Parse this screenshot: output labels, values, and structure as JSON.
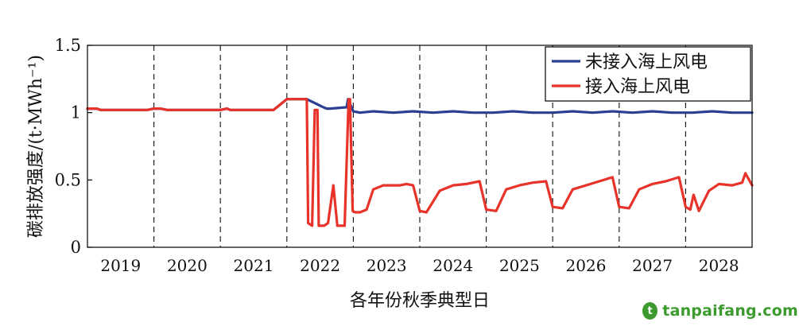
{
  "chart_data": {
    "type": "line",
    "xlabel": "各年份秋季典型日",
    "ylabel": "碳排放强度/(t·MWh⁻¹)",
    "ylim": [
      0,
      1.5
    ],
    "yticks": [
      0,
      0.5,
      1,
      1.5
    ],
    "ytick_labels": [
      "0",
      "0.5",
      "1",
      "1.5"
    ],
    "xlim": [
      0,
      10
    ],
    "categories": [
      "2019",
      "2020",
      "2021",
      "2022",
      "2023",
      "2024",
      "2025",
      "2026",
      "2027",
      "2028"
    ],
    "legend_position": "top-right",
    "colors": {
      "blue": "#2b3f93",
      "red": "#e8332b"
    },
    "series": [
      {
        "name": "未接入海上风电",
        "color": "#2b3f93",
        "x": [
          0,
          0.14,
          0.2,
          0.4,
          0.7,
          0.9,
          1,
          1.1,
          1.2,
          1.25,
          1.5,
          1.8,
          2,
          2.1,
          2.15,
          2.5,
          2.8,
          3,
          3.05,
          3.3,
          3.55,
          3.6,
          3.65,
          3.9,
          3.92,
          4.0,
          4.1,
          4.3,
          4.6,
          4.9,
          5.2,
          5.5,
          5.8,
          6.1,
          6.4,
          6.7,
          7,
          7.3,
          7.6,
          7.9,
          8.2,
          8.5,
          8.8,
          9.1,
          9.4,
          9.7,
          10
        ],
        "y": [
          1.03,
          1.03,
          1.02,
          1.02,
          1.02,
          1.02,
          1.03,
          1.03,
          1.02,
          1.02,
          1.02,
          1.02,
          1.02,
          1.03,
          1.02,
          1.02,
          1.02,
          1.1,
          1.1,
          1.1,
          1.04,
          1.03,
          1.03,
          1.04,
          1.1,
          1.01,
          1.0,
          1.01,
          1.0,
          1.01,
          1.0,
          1.01,
          1.0,
          1.0,
          1.01,
          1.0,
          1.0,
          1.01,
          1.0,
          1.01,
          1.0,
          1.01,
          1.0,
          1.0,
          1.01,
          1.0,
          1.0
        ]
      },
      {
        "name": "接入海上风电",
        "color": "#e8332b",
        "x": [
          0,
          0.14,
          0.2,
          0.4,
          0.7,
          0.9,
          1,
          1.1,
          1.2,
          1.25,
          1.5,
          1.8,
          2,
          2.1,
          2.15,
          2.5,
          2.8,
          3,
          3.05,
          3.3,
          3.32,
          3.38,
          3.42,
          3.46,
          3.48,
          3.52,
          3.56,
          3.62,
          3.7,
          3.76,
          3.8,
          3.83,
          3.87,
          3.93,
          3.95,
          3.99,
          4.03,
          4.1,
          4.2,
          4.3,
          4.45,
          4.7,
          4.8,
          4.9,
          5.0,
          5.1,
          5.3,
          5.5,
          5.7,
          5.9,
          6.0,
          6.15,
          6.3,
          6.5,
          6.7,
          6.9,
          7.0,
          7.15,
          7.3,
          7.5,
          7.7,
          7.9,
          8.0,
          8.15,
          8.3,
          8.5,
          8.7,
          8.9,
          9.0,
          9.07,
          9.12,
          9.2,
          9.35,
          9.5,
          9.7,
          9.85,
          9.9,
          10
        ],
        "y": [
          1.03,
          1.03,
          1.02,
          1.02,
          1.02,
          1.02,
          1.03,
          1.03,
          1.02,
          1.02,
          1.02,
          1.02,
          1.02,
          1.03,
          1.02,
          1.02,
          1.02,
          1.1,
          1.1,
          1.1,
          0.18,
          0.16,
          1.02,
          1.02,
          0.16,
          0.16,
          0.16,
          0.18,
          0.46,
          0.16,
          0.16,
          0.16,
          0.16,
          1.1,
          1.1,
          0.27,
          0.26,
          0.26,
          0.28,
          0.43,
          0.46,
          0.46,
          0.47,
          0.46,
          0.27,
          0.26,
          0.42,
          0.46,
          0.47,
          0.49,
          0.28,
          0.27,
          0.43,
          0.46,
          0.48,
          0.49,
          0.3,
          0.29,
          0.43,
          0.46,
          0.49,
          0.52,
          0.3,
          0.29,
          0.43,
          0.47,
          0.49,
          0.52,
          0.3,
          0.28,
          0.39,
          0.27,
          0.42,
          0.47,
          0.46,
          0.48,
          0.55,
          0.46
        ]
      }
    ]
  },
  "watermark": {
    "logo_glyph": "t",
    "text": "tanpaifang.com"
  }
}
